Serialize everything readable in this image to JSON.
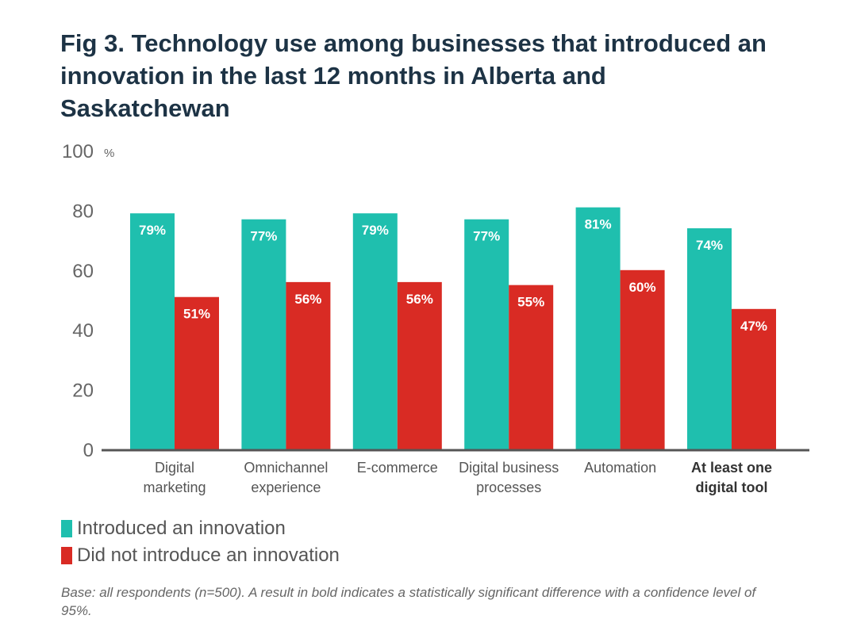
{
  "chart_data": {
    "type": "bar",
    "title": "Fig 3. Technology use among businesses that introduced an innovation in the last 12 months in Alberta and Saskatchewan",
    "ylabel": "%",
    "xlabel": "",
    "ylim": [
      0,
      100
    ],
    "yticks": [
      "0",
      "20",
      "40",
      "60",
      "80",
      "100"
    ],
    "categories": [
      {
        "lines": [
          "Digital",
          "marketing"
        ],
        "bold": false
      },
      {
        "lines": [
          "Omnichannel",
          "experience"
        ],
        "bold": false
      },
      {
        "lines": [
          "E-commerce"
        ],
        "bold": false
      },
      {
        "lines": [
          "Digital business",
          "processes"
        ],
        "bold": false
      },
      {
        "lines": [
          "Automation"
        ],
        "bold": false
      },
      {
        "lines": [
          "At least one",
          "digital tool"
        ],
        "bold": true
      }
    ],
    "series": [
      {
        "name": "Introduced an innovation",
        "color": "#1fbfae",
        "values": [
          79,
          77,
          79,
          77,
          81,
          74
        ],
        "labels": [
          "79%",
          "77%",
          "79%",
          "77%",
          "81%",
          "74%"
        ]
      },
      {
        "name": "Did not introduce an innovation",
        "color": "#d92b24",
        "values": [
          51,
          56,
          56,
          55,
          60,
          47
        ],
        "labels": [
          "51%",
          "56%",
          "56%",
          "55%",
          "60%",
          "47%"
        ]
      }
    ],
    "legend_position": "bottom-left",
    "grid": false
  },
  "note": "Base: all respondents (n=500). A result in bold indicates a statistically significant difference with a confidence level of 95%."
}
